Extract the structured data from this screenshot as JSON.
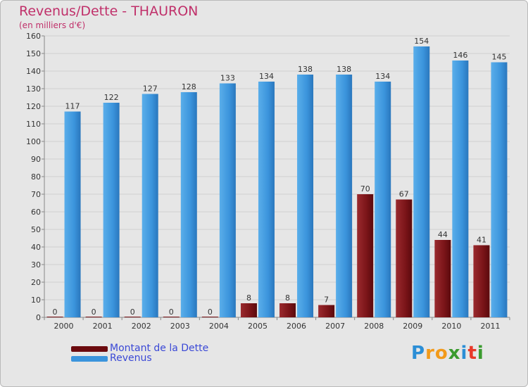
{
  "chart_data": {
    "type": "bar",
    "title": "Revenus/Dette - THAURON",
    "subtitle": "(en milliers d'€)",
    "categories": [
      "2000",
      "2001",
      "2002",
      "2003",
      "2004",
      "2005",
      "2006",
      "2007",
      "2008",
      "2009",
      "2010",
      "2011"
    ],
    "series": [
      {
        "name": "Montant de la Dette",
        "color": "#7a0e12",
        "values": [
          0,
          0,
          0,
          0,
          0,
          8,
          8,
          7,
          70,
          67,
          44,
          41
        ]
      },
      {
        "name": "Revenus",
        "color": "#3b94dc",
        "values": [
          117,
          122,
          127,
          128,
          133,
          134,
          138,
          138,
          134,
          154,
          146,
          145
        ]
      }
    ],
    "ylim": [
      0,
      160
    ],
    "yticks": [
      0,
      10,
      20,
      30,
      40,
      50,
      60,
      70,
      80,
      90,
      100,
      110,
      120,
      130,
      140,
      150,
      160
    ],
    "grid": true,
    "legend": "bottom-left"
  },
  "logo": {
    "letters": [
      "P",
      "r",
      "o",
      "x",
      "i",
      "t",
      "i"
    ],
    "colors": [
      "#2b8ed6",
      "#f29a1a",
      "#f29a1a",
      "#3a9b2e",
      "#2b8ed6",
      "#e8392a",
      "#3a9b2e"
    ]
  }
}
